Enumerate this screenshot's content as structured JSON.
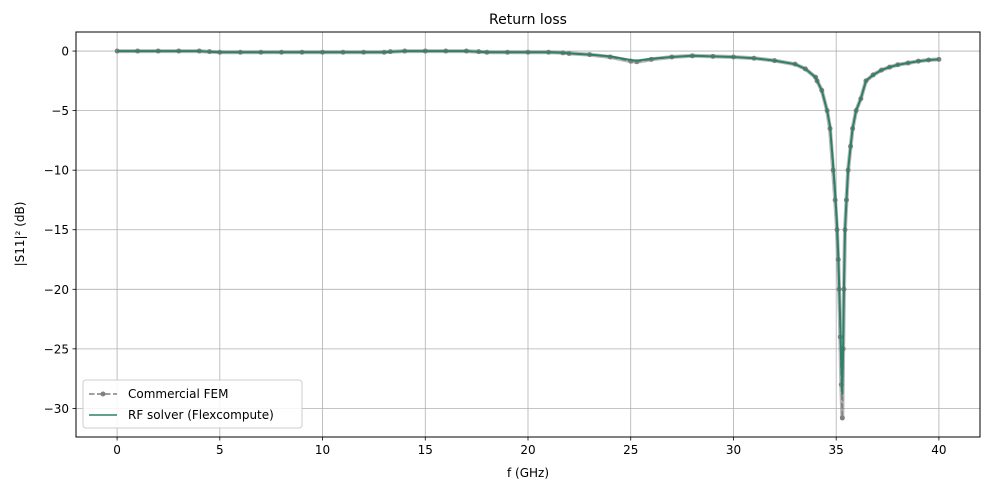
{
  "chart_data": {
    "type": "line",
    "title": "Return loss",
    "xlabel": "f (GHz)",
    "ylabel": "|S11|² (dB)",
    "xlim": [
      -2,
      42
    ],
    "ylim": [
      -32.4,
      1.6
    ],
    "xticks": [
      0,
      5,
      10,
      15,
      20,
      25,
      30,
      35,
      40
    ],
    "yticks": [
      0,
      -5,
      -10,
      -15,
      -20,
      -25,
      -30
    ],
    "xtick_labels": [
      "0",
      "5",
      "10",
      "15",
      "20",
      "25",
      "30",
      "35",
      "40"
    ],
    "ytick_labels": [
      "0",
      "−5",
      "−10",
      "−15",
      "−20",
      "−25",
      "−30"
    ],
    "grid": true,
    "legend_position": "bottom-left",
    "series": [
      {
        "name": "Commercial FEM",
        "color": "#808080",
        "style": "dashed-with-circle-markers",
        "x": [
          0,
          1,
          2,
          3,
          4,
          4.5,
          5,
          6,
          7,
          8,
          9,
          10,
          11,
          12,
          13,
          13.3,
          14,
          15,
          16,
          17,
          17.6,
          18,
          19,
          20,
          21,
          21.7,
          22,
          23,
          24,
          25,
          25.3,
          26,
          27,
          28,
          29,
          30,
          31,
          32,
          33,
          33.5,
          34,
          34.07,
          34.3,
          34.56,
          34.7,
          34.85,
          34.95,
          35.04,
          35.1,
          35.14,
          35.2,
          35.25,
          35.3,
          35.34,
          35.38,
          35.43,
          35.5,
          35.58,
          35.7,
          35.8,
          35.97,
          36.2,
          36.45,
          36.8,
          37.2,
          37.6,
          38,
          38.5,
          39,
          39.5,
          40
        ],
        "y": [
          0,
          0,
          0,
          0,
          0,
          -0.05,
          -0.1,
          -0.1,
          -0.1,
          -0.1,
          -0.1,
          -0.1,
          -0.1,
          -0.1,
          -0.1,
          -0.05,
          0,
          0,
          0,
          0,
          -0.05,
          -0.1,
          -0.1,
          -0.1,
          -0.1,
          -0.15,
          -0.2,
          -0.3,
          -0.5,
          -0.85,
          -0.9,
          -0.7,
          -0.5,
          -0.4,
          -0.45,
          -0.5,
          -0.6,
          -0.8,
          -1.1,
          -1.5,
          -2.2,
          -2.5,
          -3.3,
          -5,
          -6.5,
          -10,
          -12.5,
          -15,
          -17.5,
          -20,
          -24,
          -28,
          -30.8,
          -25,
          -20,
          -15,
          -12.5,
          -10,
          -8,
          -6.5,
          -5,
          -4,
          -2.5,
          -2,
          -1.6,
          -1.35,
          -1.15,
          -1,
          -0.85,
          -0.75,
          -0.7
        ]
      },
      {
        "name": "RF solver (Flexcompute)",
        "color": "#2e8069",
        "style": "solid",
        "x": [
          0,
          1,
          2,
          3,
          4,
          4.5,
          5,
          6,
          7,
          8,
          9,
          10,
          11,
          12,
          13,
          13.3,
          14,
          15,
          16,
          17,
          17.6,
          18,
          19,
          20,
          21,
          21.7,
          22,
          23,
          24,
          25,
          25.3,
          26,
          27,
          28,
          29,
          30,
          31,
          32,
          33,
          33.5,
          34,
          34.07,
          34.3,
          34.56,
          34.7,
          34.85,
          34.95,
          35.04,
          35.1,
          35.14,
          35.2,
          35.25,
          35.3,
          35.34,
          35.38,
          35.43,
          35.5,
          35.58,
          35.7,
          35.8,
          35.97,
          36.2,
          36.45,
          36.8,
          37.2,
          37.6,
          38,
          38.5,
          39,
          39.5,
          40
        ],
        "y": [
          0,
          0,
          0,
          0,
          0,
          -0.05,
          -0.1,
          -0.1,
          -0.1,
          -0.1,
          -0.1,
          -0.1,
          -0.1,
          -0.1,
          -0.1,
          -0.05,
          0,
          0,
          0,
          0,
          -0.05,
          -0.1,
          -0.1,
          -0.1,
          -0.1,
          -0.15,
          -0.2,
          -0.3,
          -0.45,
          -0.75,
          -0.8,
          -0.65,
          -0.5,
          -0.4,
          -0.45,
          -0.5,
          -0.6,
          -0.8,
          -1.1,
          -1.5,
          -2.2,
          -2.5,
          -3.3,
          -5,
          -6.3,
          -9.5,
          -12,
          -14.5,
          -17,
          -19.5,
          -23,
          -26.5,
          -28.8,
          -24.5,
          -19.5,
          -15,
          -12.5,
          -10,
          -8,
          -6.5,
          -5,
          -4,
          -2.5,
          -2,
          -1.6,
          -1.35,
          -1.15,
          -1,
          -0.85,
          -0.75,
          -0.7
        ]
      }
    ]
  }
}
